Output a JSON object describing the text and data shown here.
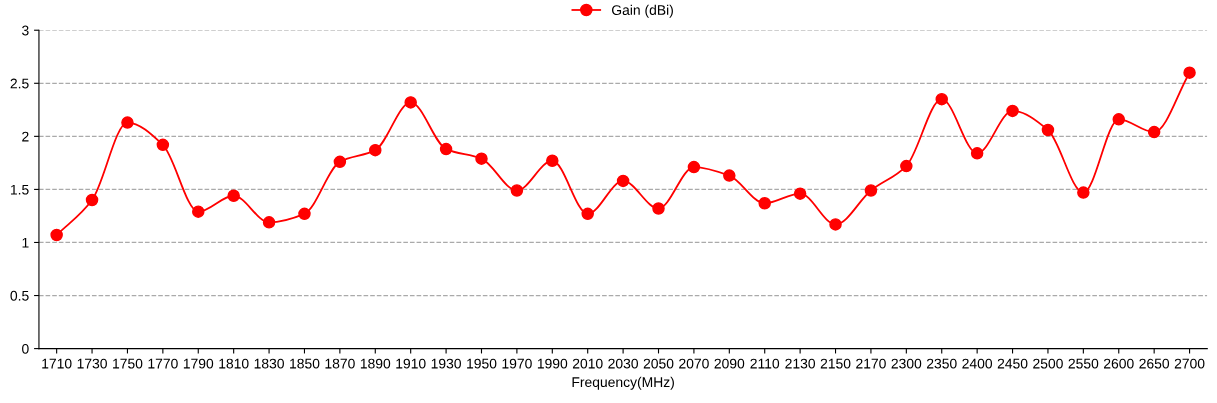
{
  "chart_data": {
    "type": "line",
    "xlabel": "Frequency(MHz)",
    "categories": [
      "1710",
      "1730",
      "1750",
      "1770",
      "1790",
      "1810",
      "1830",
      "1850",
      "1870",
      "1890",
      "1910",
      "1930",
      "1950",
      "1970",
      "1990",
      "2010",
      "2030",
      "2050",
      "2070",
      "2090",
      "2110",
      "2130",
      "2150",
      "2170",
      "2300",
      "2350",
      "2400",
      "2450",
      "2500",
      "2550",
      "2600",
      "2650",
      "2700"
    ],
    "series": [
      {
        "name": "Gain (dBi)",
        "color": "#ff0000",
        "values": [
          1.07,
          1.4,
          2.13,
          1.92,
          1.29,
          1.44,
          1.19,
          1.27,
          1.76,
          1.87,
          2.32,
          1.88,
          1.79,
          1.49,
          1.77,
          1.27,
          1.58,
          1.32,
          1.71,
          1.63,
          1.37,
          1.46,
          1.17,
          1.49,
          1.72,
          2.35,
          1.84,
          2.24,
          2.06,
          1.47,
          2.16,
          2.04,
          2.6
        ]
      }
    ],
    "ylim": [
      0,
      3
    ],
    "yticks": [
      0,
      0.5,
      1,
      1.5,
      2,
      2.5,
      3
    ],
    "grid": "y",
    "legend": "top",
    "marker": "circle",
    "line_style": "solid"
  }
}
